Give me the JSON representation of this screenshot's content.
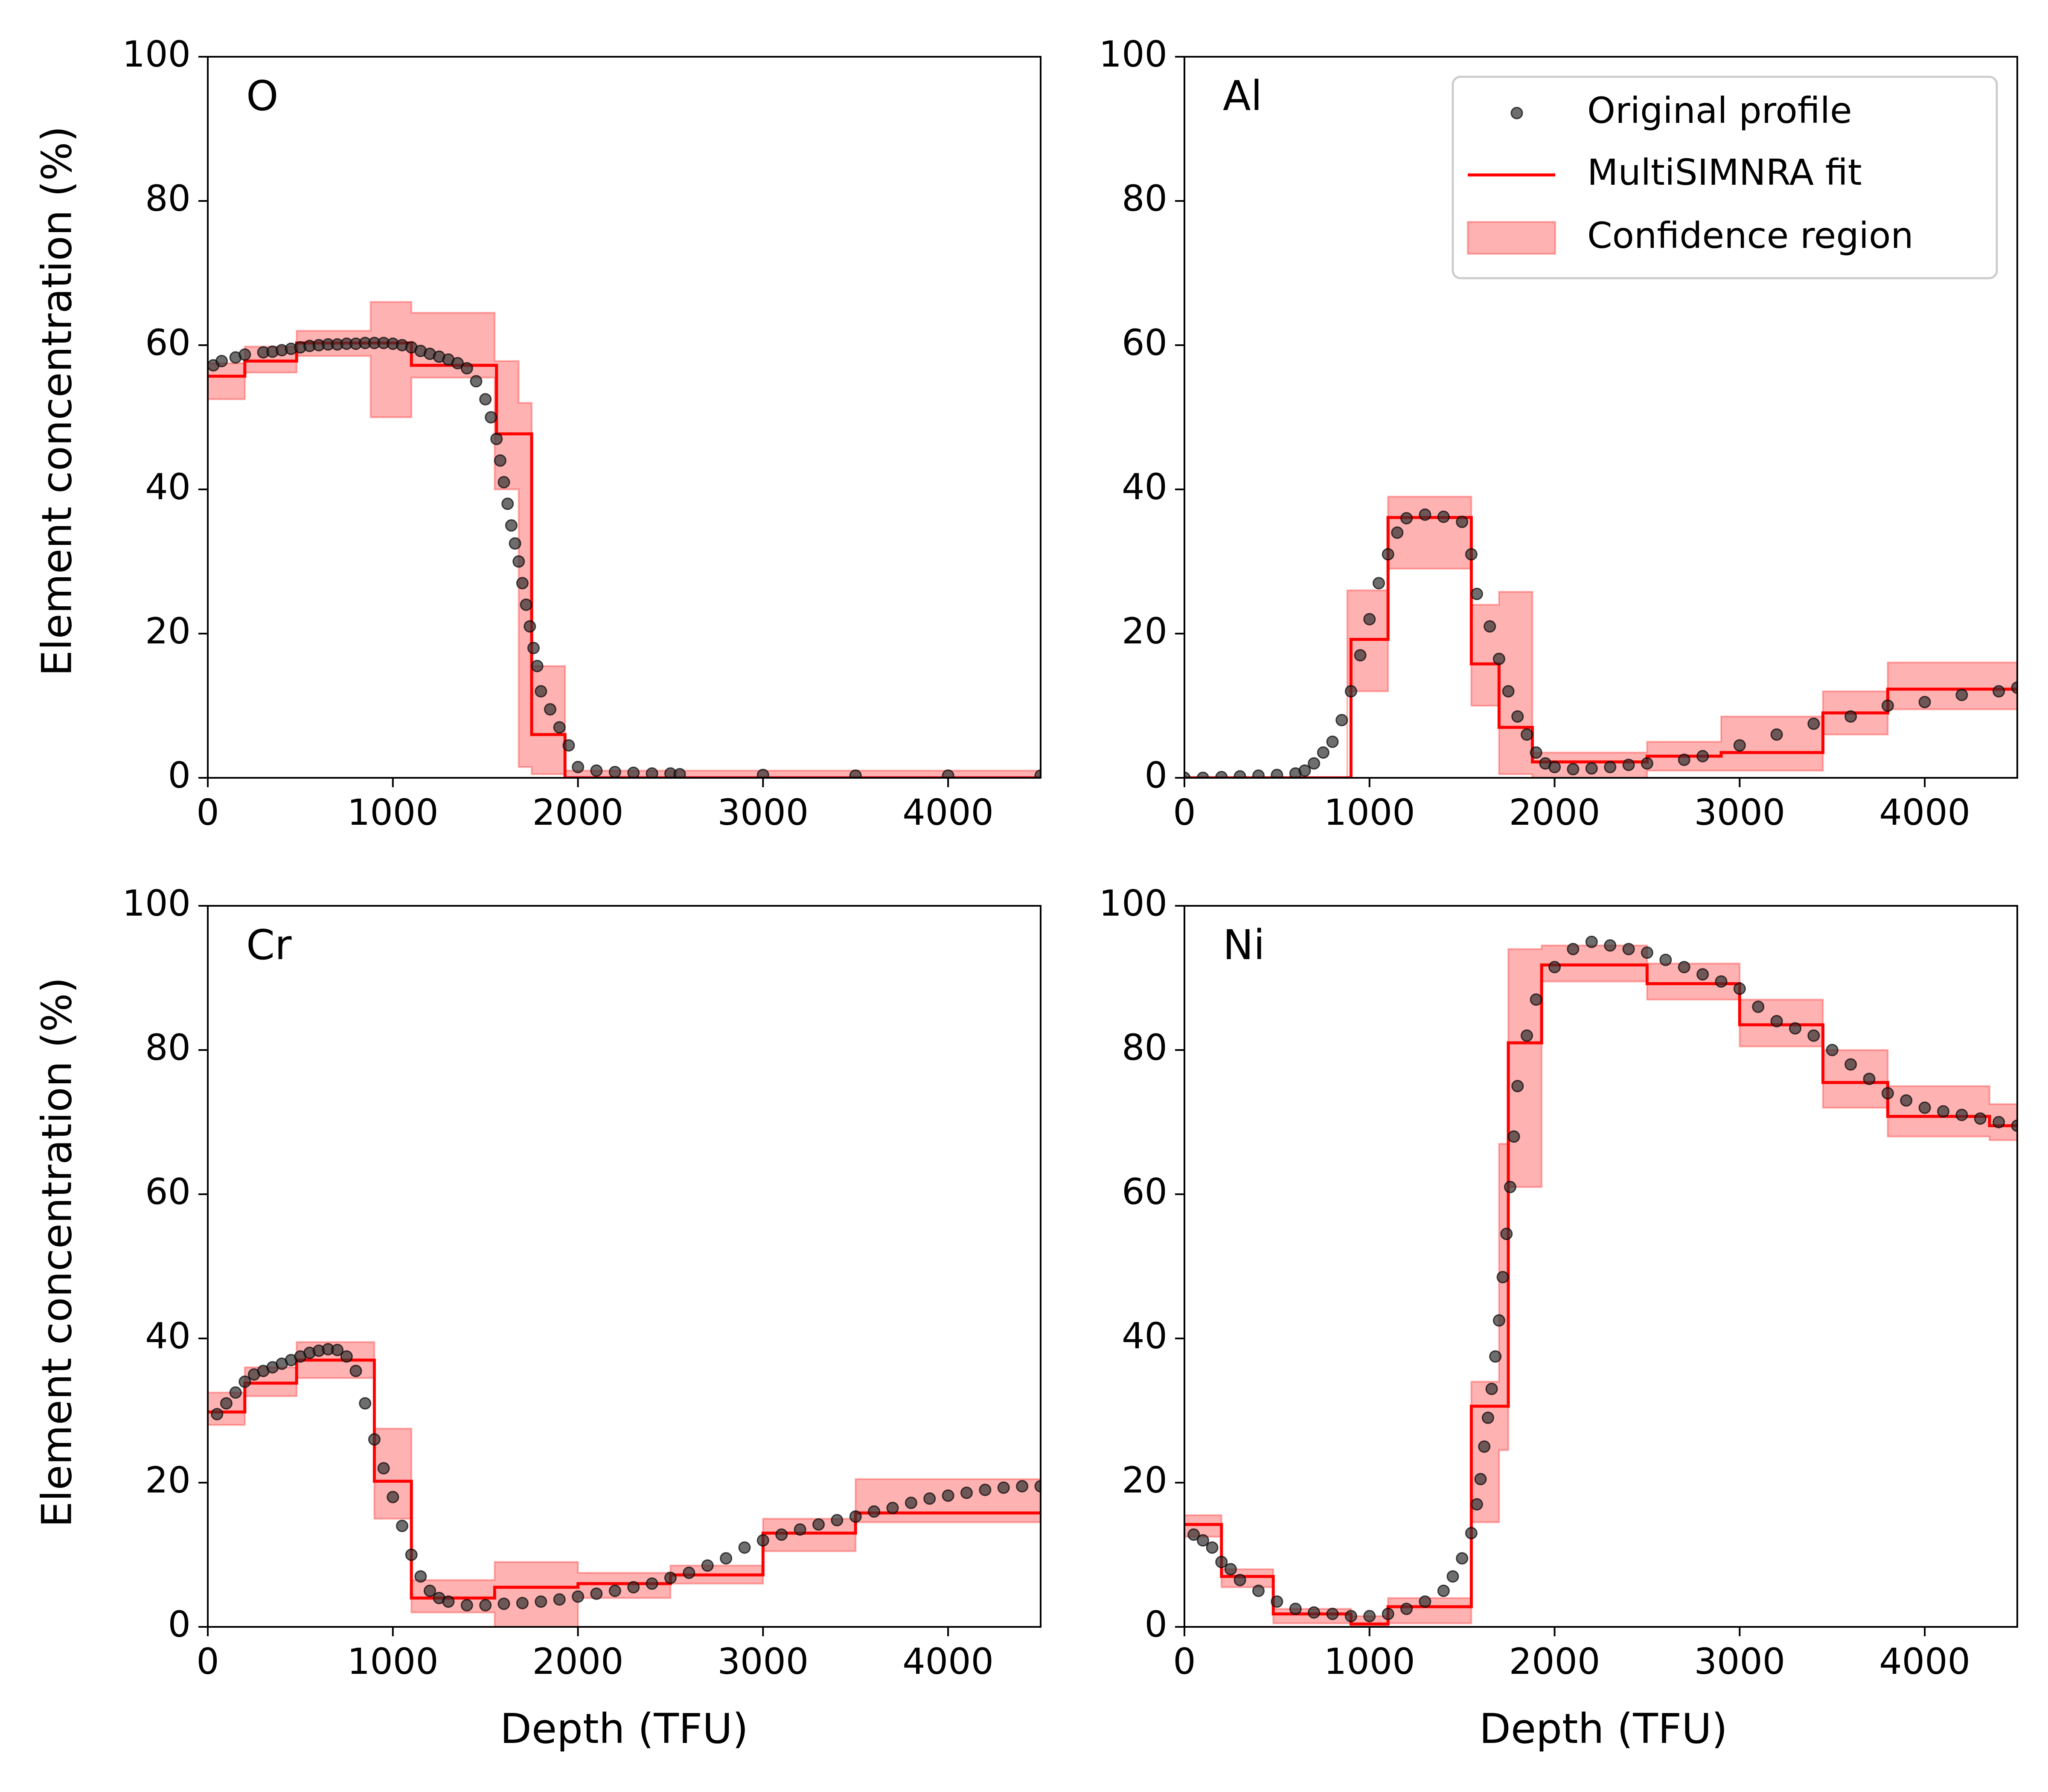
{
  "figure": {
    "ylabel": "Element concentration (%)",
    "xlabel": "Depth (TFU)",
    "legend": {
      "placement": "top-right",
      "panel": 1,
      "entries": [
        {
          "label": "Original profile",
          "kind": "marker"
        },
        {
          "label": "MultiSIMNRA fit",
          "kind": "line"
        },
        {
          "label": "Confidence region",
          "kind": "patch"
        }
      ]
    },
    "colors": {
      "fit": "#ff0000",
      "band_fill": "#ff0000",
      "points": "#303030"
    },
    "x_ticks": [
      0,
      1000,
      2000,
      3000,
      4000
    ],
    "y_ticks": [
      0,
      20,
      40,
      60,
      80,
      100
    ]
  },
  "chart_data": [
    {
      "type": "line",
      "title": "O",
      "xlabel": "",
      "ylabel": "Element concentration (%)",
      "xlim": [
        0,
        4500
      ],
      "ylim": [
        0,
        100
      ],
      "series": [
        {
          "name": "Original profile",
          "x": [
            30,
            75,
            150,
            200,
            300,
            350,
            400,
            450,
            500,
            550,
            600,
            650,
            700,
            750,
            800,
            850,
            900,
            950,
            1000,
            1050,
            1100,
            1150,
            1200,
            1250,
            1300,
            1350,
            1400,
            1450,
            1500,
            1530,
            1560,
            1580,
            1600,
            1620,
            1640,
            1660,
            1680,
            1700,
            1720,
            1740,
            1760,
            1780,
            1800,
            1850,
            1900,
            1950,
            2000,
            2100,
            2200,
            2300,
            2400,
            2500,
            2550,
            3000,
            3500,
            4000,
            4500
          ],
          "y": [
            57.2,
            57.8,
            58.3,
            58.7,
            59,
            59.1,
            59.3,
            59.5,
            59.7,
            59.9,
            60,
            60.1,
            60.1,
            60.2,
            60.2,
            60.3,
            60.3,
            60.3,
            60.2,
            60,
            59.7,
            59.2,
            58.8,
            58.4,
            58,
            57.5,
            56.8,
            55,
            52.5,
            50,
            47,
            44,
            41,
            38,
            35,
            32.5,
            30,
            27,
            24,
            21,
            18,
            15.5,
            12,
            9.5,
            7,
            4.5,
            1.5,
            1,
            0.8,
            0.7,
            0.6,
            0.6,
            0.5,
            0.4,
            0.3,
            0.3,
            0.3
          ]
        },
        {
          "name": "MultiSIMNRA fit",
          "x": [
            0,
            200,
            200,
            480,
            480,
            950,
            950,
            1100,
            1100,
            1560,
            1560,
            1700,
            1700,
            1750,
            1750,
            1930,
            1930,
            4500
          ],
          "y": [
            55.7,
            55.7,
            57.8,
            57.8,
            60.3,
            60.3,
            60.3,
            60.3,
            57.2,
            57.2,
            47.7,
            47.7,
            47.7,
            47.7,
            6,
            6,
            0,
            0
          ]
        },
        {
          "name": "Confidence region",
          "x": [
            0,
            200,
            200,
            480,
            480,
            880,
            880,
            1100,
            1100,
            1550,
            1550,
            1680,
            1680,
            1750,
            1750,
            1930,
            1930,
            4500
          ],
          "upper": [
            57.5,
            57.5,
            59.8,
            59.8,
            62,
            62,
            66,
            66,
            64.5,
            64.5,
            57.8,
            57.8,
            52,
            52,
            15.5,
            15.5,
            1,
            1
          ],
          "lower": [
            52.5,
            52.5,
            56.2,
            56.2,
            58.5,
            58.5,
            50,
            50,
            55.5,
            55.5,
            40,
            40,
            1.5,
            1.5,
            0.5,
            0.5,
            0,
            0
          ]
        }
      ]
    },
    {
      "type": "line",
      "title": "Al",
      "xlabel": "",
      "ylabel": "",
      "xlim": [
        0,
        4500
      ],
      "ylim": [
        0,
        100
      ],
      "series": [
        {
          "name": "Original profile",
          "x": [
            0,
            100,
            200,
            300,
            400,
            500,
            600,
            650,
            700,
            750,
            800,
            850,
            900,
            950,
            1000,
            1050,
            1100,
            1150,
            1200,
            1300,
            1400,
            1500,
            1550,
            1580,
            1650,
            1700,
            1750,
            1800,
            1850,
            1900,
            1950,
            2000,
            2100,
            2200,
            2300,
            2400,
            2500,
            2700,
            2800,
            3000,
            3200,
            3400,
            3600,
            3800,
            4000,
            4200,
            4400,
            4500
          ],
          "y": [
            0,
            0,
            0.1,
            0.2,
            0.3,
            0.4,
            0.6,
            1,
            2,
            3.5,
            5,
            8,
            12,
            17,
            22,
            27,
            31,
            34,
            36,
            36.5,
            36.2,
            35.5,
            31,
            25.5,
            21,
            16.5,
            12,
            8.5,
            6,
            3.5,
            2,
            1.5,
            1.2,
            1.3,
            1.5,
            1.8,
            2,
            2.5,
            3,
            4.5,
            6,
            7.5,
            8.5,
            10,
            10.5,
            11.5,
            12,
            12.5
          ]
        },
        {
          "name": "MultiSIMNRA fit",
          "x": [
            0,
            900,
            900,
            1100,
            1100,
            1550,
            1550,
            1700,
            1700,
            1880,
            1880,
            2500,
            2500,
            2900,
            2900,
            3450,
            3450,
            3800,
            3800,
            4500
          ],
          "y": [
            0,
            0,
            19.2,
            19.2,
            36.1,
            36.1,
            15.8,
            15.8,
            7,
            7,
            2.2,
            2.2,
            3,
            3,
            3.5,
            3.5,
            9,
            9,
            12.3,
            12.3
          ]
        },
        {
          "name": "Confidence region",
          "x": [
            0,
            880,
            880,
            1100,
            1100,
            1550,
            1550,
            1700,
            1700,
            1880,
            1880,
            2500,
            2500,
            2900,
            2900,
            3450,
            3450,
            3800,
            3800,
            4500
          ],
          "upper": [
            0,
            0,
            26,
            26,
            39,
            39,
            24,
            24,
            25.8,
            25.8,
            3.5,
            3.5,
            5,
            5,
            8.5,
            8.5,
            12,
            12,
            16,
            16
          ],
          "lower": [
            0,
            0,
            12,
            12,
            29,
            29,
            10,
            10,
            0.5,
            0.5,
            0,
            0,
            1,
            1,
            1,
            1,
            6,
            6,
            9.5,
            9.5
          ]
        }
      ]
    },
    {
      "type": "line",
      "title": "Cr",
      "xlabel": "Depth (TFU)",
      "ylabel": "Element concentration (%)",
      "xlim": [
        0,
        4500
      ],
      "ylim": [
        0,
        100
      ],
      "series": [
        {
          "name": "Original profile",
          "x": [
            50,
            100,
            150,
            200,
            250,
            300,
            350,
            400,
            450,
            500,
            550,
            600,
            650,
            700,
            750,
            800,
            850,
            900,
            950,
            1000,
            1050,
            1100,
            1150,
            1200,
            1250,
            1300,
            1400,
            1500,
            1600,
            1700,
            1800,
            1900,
            2000,
            2100,
            2200,
            2300,
            2400,
            2500,
            2600,
            2700,
            2800,
            2900,
            3000,
            3100,
            3200,
            3300,
            3400,
            3500,
            3600,
            3700,
            3800,
            3900,
            4000,
            4100,
            4200,
            4300,
            4400,
            4500
          ],
          "y": [
            29.5,
            31,
            32.5,
            34,
            35,
            35.5,
            36,
            36.5,
            37,
            37.5,
            38,
            38.3,
            38.5,
            38.4,
            37.5,
            35.5,
            31,
            26,
            22,
            18,
            14,
            10,
            7,
            5,
            4,
            3.5,
            3,
            3,
            3.2,
            3.3,
            3.5,
            3.8,
            4.2,
            4.6,
            5,
            5.5,
            6,
            6.8,
            7.5,
            8.5,
            9.5,
            11,
            12,
            12.8,
            13.5,
            14.2,
            14.8,
            15.3,
            16,
            16.5,
            17.2,
            17.8,
            18.2,
            18.6,
            19,
            19.3,
            19.5,
            19.5
          ]
        },
        {
          "name": "MultiSIMNRA fit",
          "x": [
            0,
            200,
            200,
            480,
            480,
            900,
            900,
            1100,
            1100,
            1550,
            1550,
            2000,
            2000,
            2500,
            2500,
            3000,
            3000,
            3500,
            3500,
            4500
          ],
          "y": [
            29.8,
            29.8,
            33.8,
            33.8,
            37,
            37,
            20.2,
            20.2,
            4,
            4,
            5.5,
            5.5,
            6,
            6,
            7.2,
            7.2,
            13,
            13,
            15.8,
            15.8
          ]
        },
        {
          "name": "Confidence region",
          "x": [
            0,
            200,
            200,
            480,
            480,
            900,
            900,
            1100,
            1100,
            1550,
            1550,
            2000,
            2000,
            2500,
            2500,
            3000,
            3000,
            3500,
            3500,
            4500
          ],
          "upper": [
            32.5,
            32.5,
            36,
            36,
            39.5,
            39.5,
            27.5,
            27.5,
            6.5,
            6.5,
            9,
            9,
            7.5,
            7.5,
            8.5,
            8.5,
            15,
            15,
            20.5,
            20.5
          ],
          "lower": [
            28,
            28,
            32,
            32,
            34.5,
            34.5,
            15,
            15,
            2,
            2,
            0,
            0,
            4,
            4,
            6,
            6,
            10.5,
            10.5,
            14.5,
            14.5
          ]
        }
      ]
    },
    {
      "type": "line",
      "title": "Ni",
      "xlabel": "Depth (TFU)",
      "ylabel": "",
      "xlim": [
        0,
        4500
      ],
      "ylim": [
        0,
        100
      ],
      "series": [
        {
          "name": "Original profile",
          "x": [
            50,
            100,
            150,
            200,
            250,
            300,
            400,
            500,
            600,
            700,
            800,
            900,
            1000,
            1100,
            1200,
            1300,
            1400,
            1450,
            1500,
            1550,
            1580,
            1600,
            1620,
            1640,
            1660,
            1680,
            1700,
            1720,
            1740,
            1760,
            1780,
            1800,
            1850,
            1900,
            2000,
            2100,
            2200,
            2300,
            2400,
            2500,
            2600,
            2700,
            2800,
            2900,
            3000,
            3100,
            3200,
            3300,
            3400,
            3500,
            3600,
            3700,
            3800,
            3900,
            4000,
            4100,
            4200,
            4300,
            4400,
            4500
          ],
          "y": [
            12.8,
            12,
            11,
            9,
            8,
            6.5,
            5,
            3.5,
            2.5,
            2,
            1.8,
            1.5,
            1.5,
            1.8,
            2.5,
            3.5,
            5,
            7,
            9.5,
            13,
            17,
            20.5,
            25,
            29,
            33,
            37.5,
            42.5,
            48.5,
            54.5,
            61,
            68,
            75,
            82,
            87,
            91.5,
            94,
            95,
            94.5,
            94,
            93.5,
            92.5,
            91.5,
            90.5,
            89.5,
            88.5,
            86,
            84,
            83,
            82,
            80,
            78,
            76,
            74,
            73,
            72,
            71.5,
            71,
            70.5,
            70,
            69.5
          ]
        },
        {
          "name": "MultiSIMNRA fit",
          "x": [
            0,
            200,
            200,
            480,
            480,
            900,
            900,
            1100,
            1100,
            1550,
            1550,
            1700,
            1700,
            1750,
            1750,
            1930,
            1930,
            2500,
            2500,
            3000,
            3000,
            3450,
            3450,
            3800,
            3800,
            4350,
            4350,
            4500
          ],
          "y": [
            14.2,
            14.2,
            7,
            7,
            1.8,
            1.8,
            0.4,
            0.4,
            2.8,
            2.8,
            30.6,
            30.6,
            30.6,
            30.6,
            81,
            81,
            91.8,
            91.8,
            89.2,
            89.2,
            83.5,
            83.5,
            75.5,
            75.5,
            70.8,
            70.8,
            69.5,
            69.5
          ]
        },
        {
          "name": "Confidence region",
          "x": [
            0,
            200,
            200,
            480,
            480,
            900,
            900,
            1100,
            1100,
            1550,
            1550,
            1700,
            1700,
            1750,
            1750,
            1930,
            1930,
            2500,
            2500,
            3000,
            3000,
            3450,
            3450,
            3800,
            3800,
            4350,
            4350,
            4500
          ],
          "upper": [
            15.5,
            15.5,
            8,
            8,
            2.5,
            2.5,
            1.5,
            1.5,
            4,
            4,
            34,
            34,
            67,
            67,
            94,
            94,
            94.5,
            94.5,
            92,
            92,
            87,
            87,
            80,
            80,
            75,
            75,
            72.5,
            72.5
          ],
          "lower": [
            12.5,
            12.5,
            5.5,
            5.5,
            0.5,
            0.5,
            0,
            0,
            0.5,
            0.5,
            14.5,
            14.5,
            24.5,
            24.5,
            61,
            61,
            89.5,
            89.5,
            87,
            87,
            80.5,
            80.5,
            72,
            72,
            68,
            68,
            67.5,
            67.5
          ]
        }
      ]
    }
  ]
}
